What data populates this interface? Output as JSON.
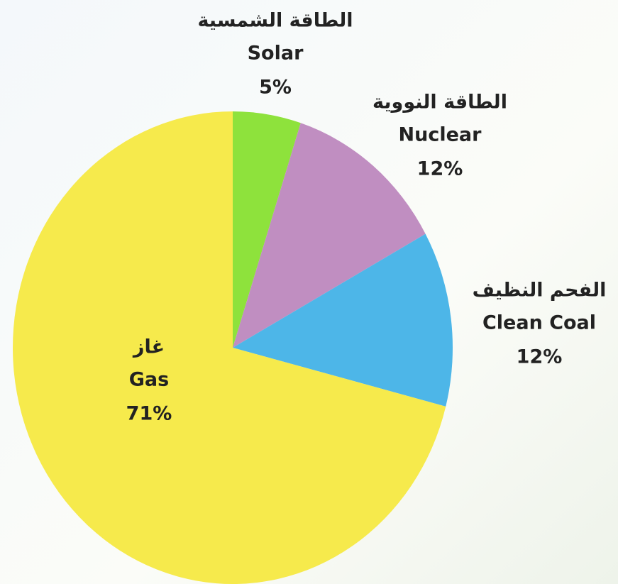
{
  "chart_data": {
    "type": "pie",
    "categories": [
      "Solar",
      "Nuclear",
      "Clean Coal",
      "Gas"
    ],
    "arabic_labels": [
      "الطاقة الشمسية",
      "الطاقة النووية",
      "الفحم النظيف",
      "غاز"
    ],
    "values": [
      5,
      12,
      12,
      71
    ],
    "value_labels": [
      "5%",
      "12%",
      "12%",
      "71%"
    ],
    "colors": [
      "#8ee23c",
      "#c08ec1",
      "#4db6e8",
      "#f6ea4c"
    ]
  }
}
